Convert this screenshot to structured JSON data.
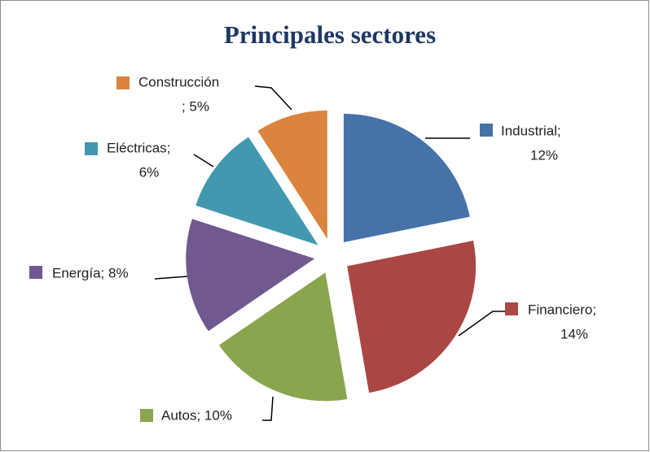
{
  "chart_data": {
    "type": "pie",
    "title": "Principales sectores",
    "values": [
      12,
      14,
      10,
      8,
      6,
      5
    ],
    "value_labels": [
      [
        "Industrial;",
        "12%"
      ],
      [
        "Financiero;",
        "14%"
      ],
      [
        "Autos; 10%"
      ],
      [
        "Energía; 8%"
      ],
      [
        "Eléctricas;",
        "6%"
      ],
      [
        "Construcción",
        "; 5%"
      ]
    ],
    "colors": [
      "#4572a7",
      "#aa4643",
      "#89a54e",
      "#71588f",
      "#4198af",
      "#db843d"
    ],
    "exploded": true
  }
}
